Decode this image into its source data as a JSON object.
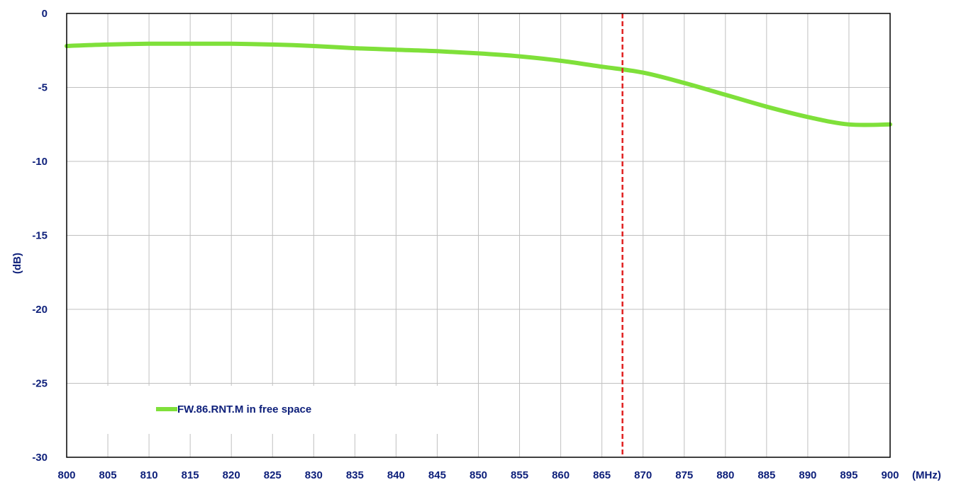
{
  "chart_data": {
    "type": "line",
    "xlabel": "(MHz)",
    "ylabel": "(dB)",
    "xlim": [
      800,
      900
    ],
    "ylim": [
      -30,
      0
    ],
    "x_ticks": [
      800,
      805,
      810,
      815,
      820,
      825,
      830,
      835,
      840,
      845,
      850,
      855,
      860,
      865,
      870,
      875,
      880,
      885,
      890,
      895,
      900
    ],
    "y_ticks": [
      0,
      -5,
      -10,
      -15,
      -20,
      -25,
      -30
    ],
    "grid": true,
    "legend_position": "bottom-left",
    "series": [
      {
        "name": "FW.86.RNT.M in free space",
        "color": "#7fe03a",
        "x": [
          800,
          805,
          810,
          815,
          820,
          825,
          830,
          835,
          840,
          845,
          850,
          855,
          860,
          865,
          870,
          875,
          880,
          885,
          890,
          895,
          900
        ],
        "y": [
          -2.2,
          -2.1,
          -2.05,
          -2.05,
          -2.05,
          -2.1,
          -2.2,
          -2.35,
          -2.45,
          -2.55,
          -2.7,
          -2.9,
          -3.2,
          -3.6,
          -4.0,
          -4.7,
          -5.5,
          -6.3,
          -7.0,
          -7.5,
          -7.5
        ]
      }
    ],
    "reference_line": {
      "x": 867.5,
      "color": "#e02020",
      "style": "dashed"
    }
  }
}
